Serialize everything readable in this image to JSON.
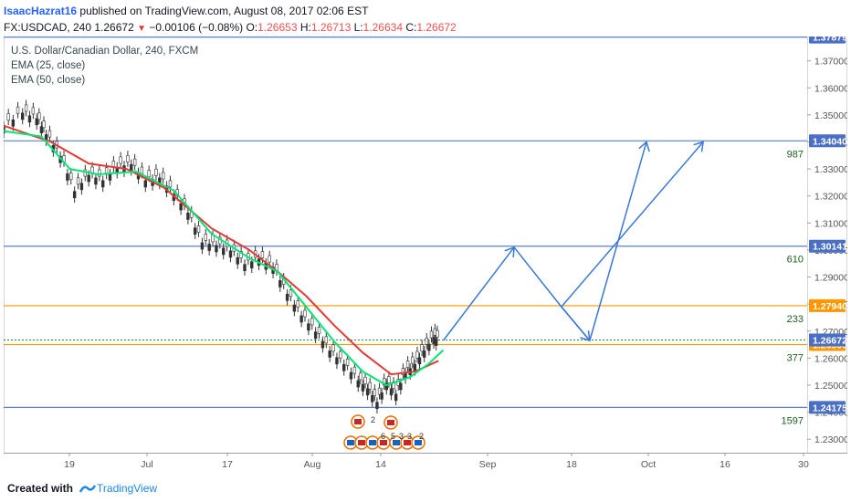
{
  "header": {
    "author": "IsaacHazrat16",
    "published": "published on TradingView.com, August 08, 2017 02:06 EST",
    "symbol_line": "FX:USDCAD, 240",
    "last": "1.26672",
    "change": "−0.00106 (−0.08%)",
    "o_label": "O:",
    "o": "1.26653",
    "h_label": "H:",
    "h": "1.26713",
    "l_label": "L:",
    "l": "1.26634",
    "c_label": "C:",
    "c": "1.26672"
  },
  "legend": {
    "title": "U.S. Dollar/Canadian Dollar, 240, FXCM",
    "ema25": "EMA (25, close)",
    "ema50": "EMA (50, close)"
  },
  "footer": {
    "created": "Created with",
    "brand": "TradingView"
  },
  "colors": {
    "price_up": "#4a4a4a",
    "ema25": "#00e676",
    "ema50": "#e53935",
    "blue_line": "#5b7fd6",
    "orange_line": "#ff9800",
    "projection": "#3a78d6",
    "badge_blue": "#4a6fc4",
    "badge_orange": "#ff9800",
    "fib_text": "#1b5e20"
  },
  "chart_data": {
    "type": "line",
    "title": "U.S. Dollar/Canadian Dollar, 240, FXCM",
    "x_ticks": [
      "19",
      "Jul",
      "17",
      "Aug",
      "14",
      "Sep",
      "18",
      "Oct",
      "16",
      "30"
    ],
    "y_ticks": [
      "1.37000",
      "1.36000",
      "1.35000",
      "1.34000",
      "1.33000",
      "1.32000",
      "1.31000",
      "1.30000",
      "1.29000",
      "1.28000",
      "1.27000",
      "1.26000",
      "1.25000",
      "1.24000",
      "1.23000"
    ],
    "ylim": [
      1.225,
      1.379
    ],
    "price_path": [
      [
        0,
        1.346
      ],
      [
        4,
        1.351
      ],
      [
        7,
        1.349
      ],
      [
        9,
        1.343
      ],
      [
        12,
        1.335
      ],
      [
        15,
        1.322
      ],
      [
        18,
        1.328
      ],
      [
        21,
        1.326
      ],
      [
        24,
        1.331
      ],
      [
        27,
        1.332
      ],
      [
        30,
        1.326
      ],
      [
        33,
        1.327
      ],
      [
        36,
        1.321
      ],
      [
        39,
        1.314
      ],
      [
        42,
        1.303
      ],
      [
        45,
        1.302
      ],
      [
        48,
        1.3
      ],
      [
        51,
        1.295
      ],
      [
        54,
        1.297
      ],
      [
        57,
        1.294
      ],
      [
        60,
        1.284
      ],
      [
        63,
        1.276
      ],
      [
        66,
        1.27
      ],
      [
        69,
        1.263
      ],
      [
        72,
        1.258
      ],
      [
        75,
        1.252
      ],
      [
        77,
        1.249
      ],
      [
        79,
        1.244
      ],
      [
        81,
        1.251
      ],
      [
        83,
        1.247
      ],
      [
        85,
        1.255
      ],
      [
        87,
        1.258
      ],
      [
        89,
        1.263
      ],
      [
        91,
        1.268
      ],
      [
        92,
        1.2667
      ]
    ],
    "ema25": [
      [
        0,
        1.344
      ],
      [
        8,
        1.342
      ],
      [
        14,
        1.33
      ],
      [
        20,
        1.328
      ],
      [
        28,
        1.329
      ],
      [
        36,
        1.322
      ],
      [
        44,
        1.306
      ],
      [
        52,
        1.297
      ],
      [
        58,
        1.292
      ],
      [
        64,
        1.279
      ],
      [
        70,
        1.266
      ],
      [
        76,
        1.255
      ],
      [
        81,
        1.25
      ],
      [
        86,
        1.253
      ],
      [
        90,
        1.258
      ],
      [
        93,
        1.263
      ]
    ],
    "ema50": [
      [
        0,
        1.346
      ],
      [
        10,
        1.34
      ],
      [
        18,
        1.332
      ],
      [
        26,
        1.33
      ],
      [
        34,
        1.323
      ],
      [
        44,
        1.308
      ],
      [
        52,
        1.3
      ],
      [
        58,
        1.292
      ],
      [
        64,
        1.283
      ],
      [
        70,
        1.272
      ],
      [
        76,
        1.262
      ],
      [
        82,
        1.254
      ],
      [
        87,
        1.255
      ],
      [
        92,
        1.259
      ]
    ],
    "horizontal_levels": [
      {
        "price": "1.37879",
        "label": "",
        "color": "blue"
      },
      {
        "price": "1.34040",
        "label": "987",
        "color": "blue"
      },
      {
        "price": "1.30141",
        "label": "610",
        "color": "blue"
      },
      {
        "price": "1.27940",
        "label": "233",
        "color": "orange"
      },
      {
        "price": "1.26500",
        "label": "377",
        "color": "orange"
      },
      {
        "price": "1.24175",
        "label": "1597",
        "color": "blue"
      }
    ],
    "current_price": "1.26672",
    "projection": [
      [
        93,
        1.2665
      ],
      [
        108,
        1.301
      ],
      [
        118,
        1.279
      ],
      [
        124,
        1.2665
      ],
      [
        136,
        1.34
      ]
    ],
    "projection2": [
      [
        118,
        1.279
      ],
      [
        148,
        1.34
      ]
    ],
    "event_marks": [
      "2",
      "6",
      "5",
      "3",
      "3",
      "2"
    ]
  }
}
